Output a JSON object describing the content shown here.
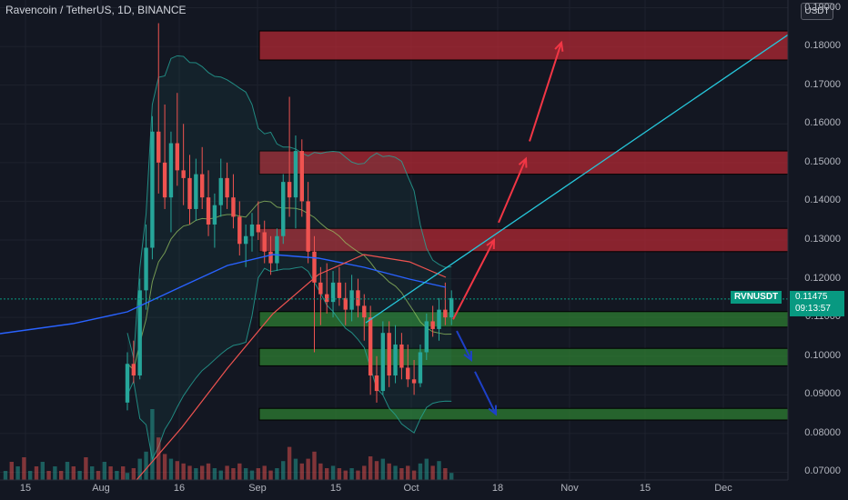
{
  "header": {
    "title": "Ravencoin / TetherUS, 1D, BINANCE",
    "currency_button": "USDT"
  },
  "price_axis": {
    "ticks": [
      "0.19000",
      "0.18000",
      "0.17000",
      "0.16000",
      "0.15000",
      "0.14000",
      "0.13000",
      "0.12000",
      "0.11000",
      "0.10000",
      "0.09000",
      "0.08000",
      "0.07000"
    ]
  },
  "time_axis": {
    "ticks": [
      "15",
      "Aug",
      "16",
      "Sep",
      "15",
      "Oct",
      "18",
      "Nov",
      "15",
      "Dec"
    ]
  },
  "last_price": {
    "symbol": "RVNUSDT",
    "price": "0.11475",
    "countdown": "09:13:57"
  },
  "colors": {
    "background": "#131722",
    "up": "#26a69a",
    "down": "#ef5350",
    "resistance_zone": "#b22833",
    "support_zone": "#2e7d32",
    "trendline": "#26c6da"
  },
  "chart_data": {
    "type": "candlestick",
    "title": "Ravencoin / TetherUS, 1D, BINANCE",
    "ylim": [
      0.068,
      0.192
    ],
    "x_tick_labels": [
      "15",
      "Aug",
      "16",
      "Sep",
      "15",
      "Oct",
      "18",
      "Nov",
      "15",
      "Dec"
    ],
    "resistance_zones": [
      [
        0.1765,
        0.184
      ],
      [
        0.147,
        0.153
      ],
      [
        0.127,
        0.133
      ]
    ],
    "support_zones": [
      [
        0.1075,
        0.1115
      ],
      [
        0.0975,
        0.102
      ],
      [
        0.0835,
        0.0865
      ]
    ],
    "last_price": 0.11475,
    "trendline": [
      {
        "date": "Sep 26",
        "price": 0.109
      },
      {
        "date": "Dec 12",
        "price": 0.183
      }
    ],
    "projection_arrows_up": [
      [
        0.1095,
        0.13
      ],
      [
        0.1345,
        0.151
      ],
      [
        0.1555,
        0.181
      ]
    ],
    "projection_arrows_down": [
      [
        0.1065,
        0.099
      ],
      [
        0.096,
        0.085
      ]
    ],
    "candles": [
      [
        0.088,
        0.101,
        0.086,
        0.098
      ],
      [
        0.098,
        0.104,
        0.093,
        0.095
      ],
      [
        0.095,
        0.12,
        0.094,
        0.117
      ],
      [
        0.117,
        0.134,
        0.112,
        0.128
      ],
      [
        0.128,
        0.162,
        0.125,
        0.158
      ],
      [
        0.158,
        0.186,
        0.142,
        0.15
      ],
      [
        0.15,
        0.165,
        0.138,
        0.141
      ],
      [
        0.141,
        0.158,
        0.132,
        0.155
      ],
      [
        0.155,
        0.168,
        0.144,
        0.148
      ],
      [
        0.148,
        0.16,
        0.139,
        0.146
      ],
      [
        0.146,
        0.152,
        0.134,
        0.138
      ],
      [
        0.138,
        0.151,
        0.135,
        0.147
      ],
      [
        0.147,
        0.154,
        0.138,
        0.141
      ],
      [
        0.141,
        0.148,
        0.131,
        0.134
      ],
      [
        0.134,
        0.142,
        0.128,
        0.139
      ],
      [
        0.139,
        0.151,
        0.136,
        0.146
      ],
      [
        0.146,
        0.15,
        0.138,
        0.141
      ],
      [
        0.141,
        0.147,
        0.133,
        0.136
      ],
      [
        0.136,
        0.14,
        0.126,
        0.129
      ],
      [
        0.129,
        0.134,
        0.123,
        0.131
      ],
      [
        0.131,
        0.137,
        0.127,
        0.134
      ],
      [
        0.134,
        0.14,
        0.13,
        0.132
      ],
      [
        0.132,
        0.135,
        0.124,
        0.127
      ],
      [
        0.127,
        0.131,
        0.121,
        0.124
      ],
      [
        0.124,
        0.133,
        0.122,
        0.131
      ],
      [
        0.131,
        0.147,
        0.129,
        0.145
      ],
      [
        0.145,
        0.167,
        0.136,
        0.141
      ],
      [
        0.141,
        0.157,
        0.133,
        0.153
      ],
      [
        0.153,
        0.156,
        0.136,
        0.14
      ],
      [
        0.14,
        0.145,
        0.124,
        0.127
      ],
      [
        0.127,
        0.131,
        0.101,
        0.119
      ],
      [
        0.119,
        0.123,
        0.108,
        0.116
      ],
      [
        0.116,
        0.124,
        0.111,
        0.114
      ],
      [
        0.114,
        0.122,
        0.11,
        0.119
      ],
      [
        0.119,
        0.123,
        0.113,
        0.115
      ],
      [
        0.115,
        0.119,
        0.108,
        0.112
      ],
      [
        0.112,
        0.121,
        0.109,
        0.117
      ],
      [
        0.117,
        0.12,
        0.11,
        0.113
      ],
      [
        0.113,
        0.116,
        0.104,
        0.11
      ],
      [
        0.11,
        0.113,
        0.09,
        0.095
      ],
      [
        0.095,
        0.1,
        0.088,
        0.091
      ],
      [
        0.091,
        0.109,
        0.09,
        0.106
      ],
      [
        0.106,
        0.109,
        0.092,
        0.095
      ],
      [
        0.095,
        0.108,
        0.093,
        0.103
      ],
      [
        0.103,
        0.106,
        0.094,
        0.097
      ],
      [
        0.097,
        0.103,
        0.092,
        0.094
      ],
      [
        0.094,
        0.099,
        0.09,
        0.093
      ],
      [
        0.093,
        0.103,
        0.092,
        0.101
      ],
      [
        0.101,
        0.111,
        0.099,
        0.109
      ],
      [
        0.109,
        0.113,
        0.105,
        0.107
      ],
      [
        0.107,
        0.115,
        0.104,
        0.112
      ],
      [
        0.112,
        0.119,
        0.108,
        0.11
      ],
      [
        0.11,
        0.117,
        0.108,
        0.115
      ]
    ],
    "volume": [
      3,
      5,
      9,
      12,
      30,
      18,
      11,
      9,
      8,
      7,
      6,
      5,
      6,
      7,
      5,
      4,
      6,
      5,
      7,
      5,
      4,
      5,
      6,
      4,
      5,
      8,
      14,
      9,
      7,
      9,
      12,
      7,
      5,
      6,
      5,
      4,
      5,
      4,
      6,
      10,
      8,
      9,
      7,
      6,
      5,
      6,
      4,
      7,
      9,
      6,
      8,
      5,
      3
    ]
  }
}
